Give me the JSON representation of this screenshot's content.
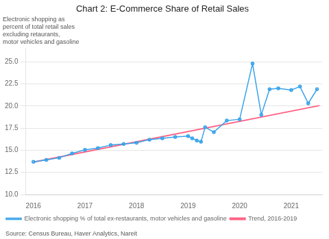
{
  "chart_data": {
    "type": "line",
    "title": "Chart 2: E-Commerce Share of Retail Sales",
    "subtitle": "Electronic shopping as\npercent of total retail sales\nexcluding retaurants,\nmotor vehicles and gasoline",
    "annotations": [
      "Source: Census Bureau, Haver Analytics, Nareit"
    ],
    "xlim": [
      2015.85,
      2021.6
    ],
    "xticks": [
      2016,
      2017,
      2018,
      2019,
      2020,
      2021
    ],
    "ylim": [
      10.0,
      26.5
    ],
    "yticks": [
      {
        "value": 10.0,
        "label": "10.0"
      },
      12.5,
      {
        "value": 15.0,
        "label": "15.0"
      },
      17.5,
      {
        "value": 20.0,
        "label": "20.0"
      },
      22.5,
      {
        "value": 25.0,
        "label": "25.0"
      }
    ],
    "grid": "y",
    "legend": "lower left",
    "series": [
      {
        "name": "Electronic shopping % of total ex-restaurants, motor vehicles and gasoline",
        "marker": "circle",
        "line_style": "solid",
        "x": [
          2016.0,
          2016.25,
          2016.5,
          2016.75,
          2017.0,
          2017.25,
          2017.5,
          2017.75,
          2018.0,
          2018.25,
          2018.5,
          2018.75,
          2019.0,
          2019.08,
          2019.17,
          2019.25,
          2019.33,
          2019.5,
          2019.75,
          2020.0,
          2020.25,
          2020.42,
          2020.58,
          2020.75,
          2021.0,
          2021.17,
          2021.33,
          2021.5
        ],
        "values": [
          13.7,
          13.9,
          14.15,
          14.65,
          15.05,
          15.25,
          15.6,
          15.7,
          15.85,
          16.2,
          16.35,
          16.5,
          16.6,
          16.35,
          16.1,
          15.95,
          17.6,
          17.05,
          18.35,
          18.5,
          24.8,
          19.0,
          21.9,
          22.0,
          21.8,
          22.2,
          20.3,
          21.9
        ]
      },
      {
        "name": "Trend, 2016-2019",
        "marker": "none",
        "line_style": "solid",
        "x": [
          2016.0,
          2021.55
        ],
        "values": [
          13.65,
          20.05
        ]
      }
    ]
  }
}
